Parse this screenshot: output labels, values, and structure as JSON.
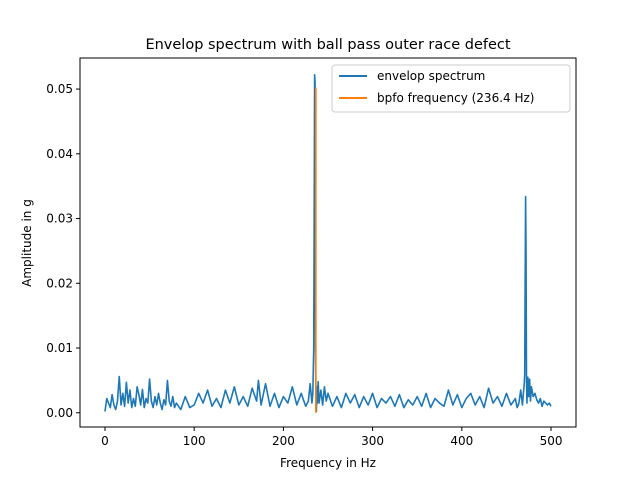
{
  "chart_data": {
    "type": "line",
    "title": "Envelop spectrum with ball pass outer race defect",
    "xlabel": "Frequency in Hz",
    "ylabel": "Amplitude in g",
    "xlim": [
      -28,
      528
    ],
    "ylim": [
      -0.0022,
      0.0548
    ],
    "xticks": [
      0,
      100,
      200,
      300,
      400,
      500
    ],
    "xtick_labels": [
      "0",
      "100",
      "200",
      "300",
      "400",
      "500"
    ],
    "yticks": [
      0.0,
      0.01,
      0.02,
      0.03,
      0.04,
      0.05
    ],
    "ytick_labels": [
      "0.00",
      "0.01",
      "0.02",
      "0.03",
      "0.04",
      "0.05"
    ],
    "grid": false,
    "legend_position": "top-right",
    "series": [
      {
        "name": "envelop spectrum",
        "color": "#1f77b4",
        "x": [
          0,
          2,
          4,
          6,
          8,
          10,
          12,
          14,
          16,
          18,
          20,
          22,
          24,
          26,
          28,
          30,
          32,
          34,
          36,
          38,
          40,
          42,
          44,
          46,
          48,
          50,
          52,
          54,
          56,
          58,
          60,
          62,
          64,
          66,
          68,
          70,
          72,
          74,
          76,
          78,
          80,
          85,
          90,
          95,
          100,
          105,
          110,
          115,
          120,
          125,
          130,
          135,
          140,
          145,
          150,
          155,
          160,
          165,
          170,
          172,
          175,
          180,
          185,
          190,
          195,
          200,
          205,
          210,
          215,
          220,
          225,
          228,
          230,
          232,
          233,
          234,
          234.5,
          235,
          235.5,
          236,
          236.5,
          237,
          237.5,
          238,
          239,
          240,
          242,
          244,
          246,
          248,
          250,
          255,
          260,
          265,
          270,
          275,
          280,
          285,
          290,
          295,
          300,
          305,
          310,
          315,
          320,
          325,
          330,
          335,
          340,
          345,
          350,
          355,
          360,
          365,
          370,
          375,
          380,
          385,
          390,
          395,
          400,
          405,
          410,
          415,
          420,
          425,
          430,
          435,
          440,
          445,
          450,
          455,
          460,
          462,
          464,
          466,
          468,
          469,
          470,
          470.5,
          471,
          471.5,
          472,
          472.5,
          473,
          474,
          475,
          476,
          477,
          478,
          480,
          482,
          484,
          486,
          488,
          490,
          492,
          494,
          496,
          498,
          500
        ],
        "y": [
          0.0002,
          0.0022,
          0.0015,
          0.0008,
          0.0028,
          0.0012,
          0.0005,
          0.0018,
          0.0056,
          0.0012,
          0.003,
          0.001,
          0.0047,
          0.0015,
          0.0035,
          0.0008,
          0.0022,
          0.001,
          0.004,
          0.0028,
          0.0012,
          0.0036,
          0.0008,
          0.0022,
          0.0015,
          0.0052,
          0.0018,
          0.0008,
          0.0025,
          0.0012,
          0.003,
          0.0015,
          0.0005,
          0.002,
          0.0012,
          0.005,
          0.0018,
          0.001,
          0.0025,
          0.0008,
          0.0015,
          0.0005,
          0.0025,
          0.0008,
          0.0012,
          0.003,
          0.0015,
          0.0035,
          0.001,
          0.0022,
          0.0008,
          0.0035,
          0.0015,
          0.004,
          0.0012,
          0.0025,
          0.001,
          0.0038,
          0.0018,
          0.005,
          0.0012,
          0.0045,
          0.001,
          0.003,
          0.0008,
          0.0025,
          0.0015,
          0.004,
          0.0012,
          0.003,
          0.001,
          0.0018,
          0.0045,
          0.0015,
          0.003,
          0.01,
          0.03,
          0.0522,
          0.051,
          0.01,
          0.001,
          0.0002,
          0.004,
          0.0015,
          0.0048,
          0.0015,
          0.0035,
          0.0012,
          0.004,
          0.0018,
          0.003,
          0.001,
          0.0025,
          0.0008,
          0.003,
          0.0015,
          0.0028,
          0.0008,
          0.0025,
          0.0012,
          0.003,
          0.0008,
          0.0022,
          0.0015,
          0.0025,
          0.001,
          0.0028,
          0.0008,
          0.002,
          0.0012,
          0.0025,
          0.001,
          0.003,
          0.0008,
          0.0022,
          0.0015,
          0.001,
          0.0035,
          0.0012,
          0.0028,
          0.0008,
          0.0022,
          0.003,
          0.0012,
          0.0025,
          0.0008,
          0.0038,
          0.0015,
          0.0025,
          0.001,
          0.003,
          0.0012,
          0.0022,
          0.0008,
          0.0015,
          0.0035,
          0.0012,
          0.003,
          0.0045,
          0.006,
          0.02,
          0.0334,
          0.025,
          0.0055,
          0.0015,
          0.0055,
          0.0025,
          0.0052,
          0.0018,
          0.004,
          0.0025,
          0.003,
          0.002,
          0.0015,
          0.0022,
          0.001,
          0.0018,
          0.0015,
          0.0012,
          0.0015,
          0.001
        ]
      },
      {
        "name": "bpfo frequency (236.4 Hz)",
        "color": "#ff7f0e",
        "x": [
          236.4,
          236.4
        ],
        "y": [
          0.0,
          0.0502
        ]
      }
    ]
  }
}
